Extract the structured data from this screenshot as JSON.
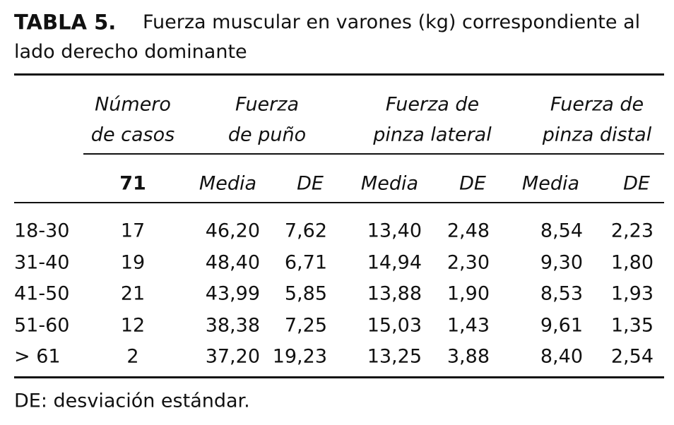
{
  "header": {
    "label": "TABLA 5.",
    "title": "Fuerza muscular en varones (kg) correspondiente al lado derecho dominante"
  },
  "table": {
    "group_headers": [
      [
        "Número",
        "de casos"
      ],
      [
        "Fuerza",
        "de puño"
      ],
      [
        "Fuerza de",
        "pinza lateral"
      ],
      [
        "Fuerza de",
        "pinza distal"
      ]
    ],
    "total_cases": "71",
    "sub_headers": [
      "Media",
      "DE",
      "Media",
      "DE",
      "Media",
      "DE"
    ],
    "rows": [
      [
        "18-30",
        "17",
        "46,20",
        "7,62",
        "13,40",
        "2,48",
        "8,54",
        "2,23"
      ],
      [
        "31-40",
        "19",
        "48,40",
        "6,71",
        "14,94",
        "2,30",
        "9,30",
        "1,80"
      ],
      [
        "41-50",
        "21",
        "43,99",
        "5,85",
        "13,88",
        "1,90",
        "8,53",
        "1,93"
      ],
      [
        "51-60",
        "12",
        "38,38",
        "7,25",
        "15,03",
        "1,43",
        "9,61",
        "1,35"
      ],
      [
        "> 61",
        "2",
        "37,20",
        "19,23",
        "13,25",
        "3,88",
        "8,40",
        "2,54"
      ]
    ]
  },
  "footnote": "DE: desviación estándar."
}
